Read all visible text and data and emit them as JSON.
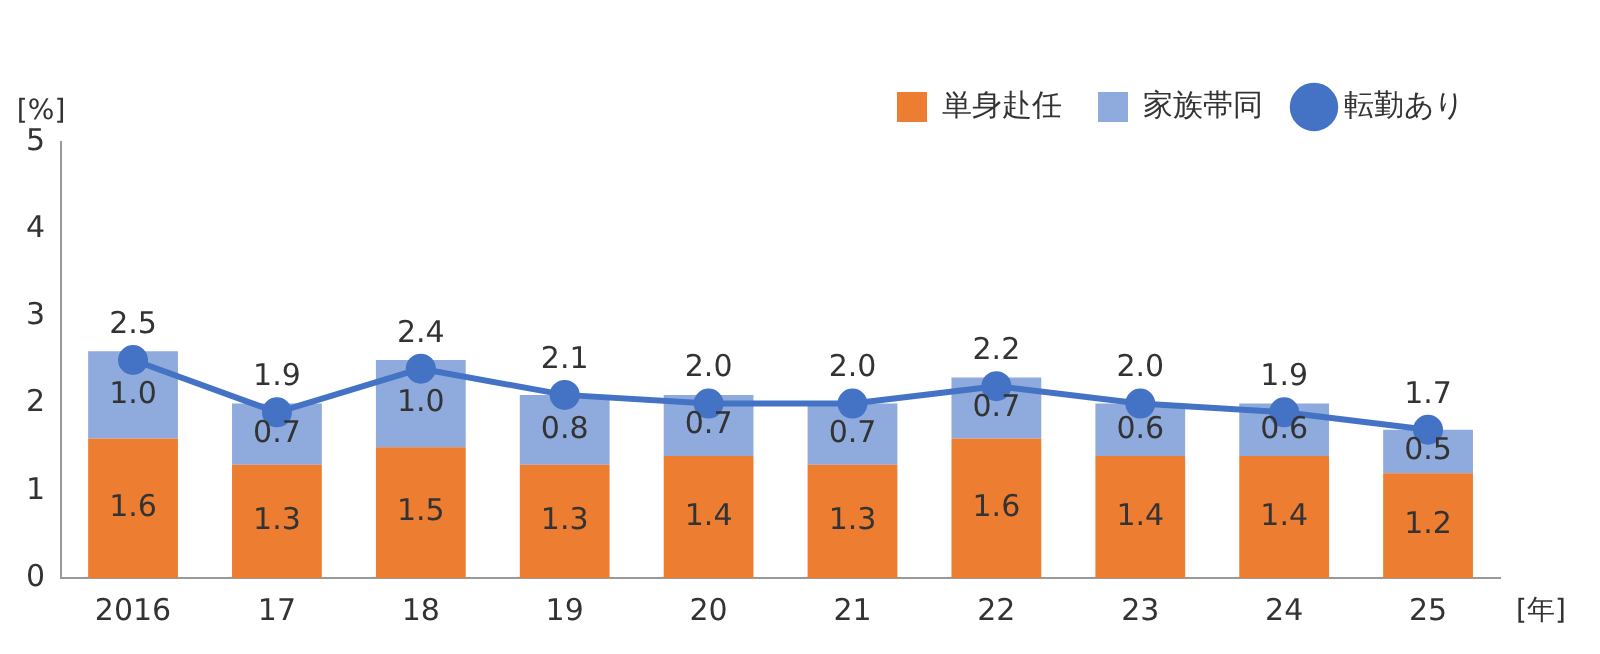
{
  "chart_data": {
    "type": "bar",
    "stacked": true,
    "ylabel": "[%]",
    "xlabel": "[年]",
    "categories": [
      "2016",
      "17",
      "18",
      "19",
      "20",
      "21",
      "22",
      "23",
      "24",
      "25"
    ],
    "series": [
      {
        "name": "単身赴任",
        "color": "#ed7d31",
        "values": [
          1.6,
          1.3,
          1.5,
          1.3,
          1.4,
          1.3,
          1.6,
          1.4,
          1.4,
          1.2
        ],
        "value_labels": [
          "1.6",
          "1.3",
          "1.5",
          "1.3",
          "1.4",
          "1.3",
          "1.6",
          "1.4",
          "1.4",
          "1.2"
        ]
      },
      {
        "name": "家族帯同",
        "color": "#8faadc",
        "values": [
          1.0,
          0.7,
          1.0,
          0.8,
          0.7,
          0.7,
          0.7,
          0.6,
          0.6,
          0.5
        ],
        "value_labels": [
          "1.0",
          "0.7",
          "1.0",
          "0.8",
          "0.7",
          "0.7",
          "0.7",
          "0.6",
          "0.6",
          "0.5"
        ]
      },
      {
        "name": "転勤あり",
        "type": "line",
        "color": "#4472c4",
        "values": [
          2.5,
          1.9,
          2.4,
          2.1,
          2.0,
          2.0,
          2.2,
          2.0,
          1.9,
          1.7
        ],
        "value_labels": [
          "2.5",
          "1.9",
          "2.4",
          "2.1",
          "2.0",
          "2.0",
          "2.2",
          "2.0",
          "1.9",
          "1.7"
        ]
      }
    ],
    "ylim": [
      0,
      5
    ],
    "yticks": [
      0,
      1,
      2,
      3,
      4,
      5
    ],
    "grid": false,
    "legend": "top right",
    "marker": "circle"
  }
}
